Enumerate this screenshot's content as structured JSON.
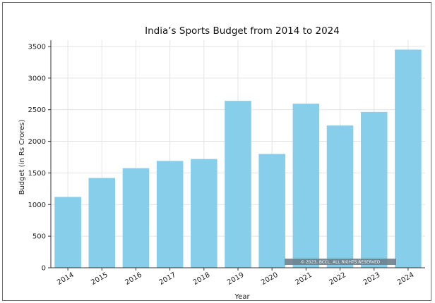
{
  "chart_data": {
    "type": "bar",
    "title": "India’s Sports Budget from 2014 to 2024",
    "xlabel": "Year",
    "ylabel": "Budget (in Rs Crores)",
    "categories": [
      "2014",
      "2015",
      "2016",
      "2017",
      "2018",
      "2019",
      "2020",
      "2021",
      "2022",
      "2023",
      "2024"
    ],
    "values": [
      1120,
      1420,
      1575,
      1690,
      1720,
      2640,
      1800,
      2595,
      2250,
      2465,
      3450
    ],
    "ylim": [
      0,
      3600
    ],
    "yticks": [
      0,
      500,
      1000,
      1500,
      2000,
      2500,
      3000,
      3500
    ],
    "grid": true,
    "bar_color": "#87ceeb",
    "watermark": "© 2023, BCCL. ALL RIGHTS RESERVED"
  }
}
